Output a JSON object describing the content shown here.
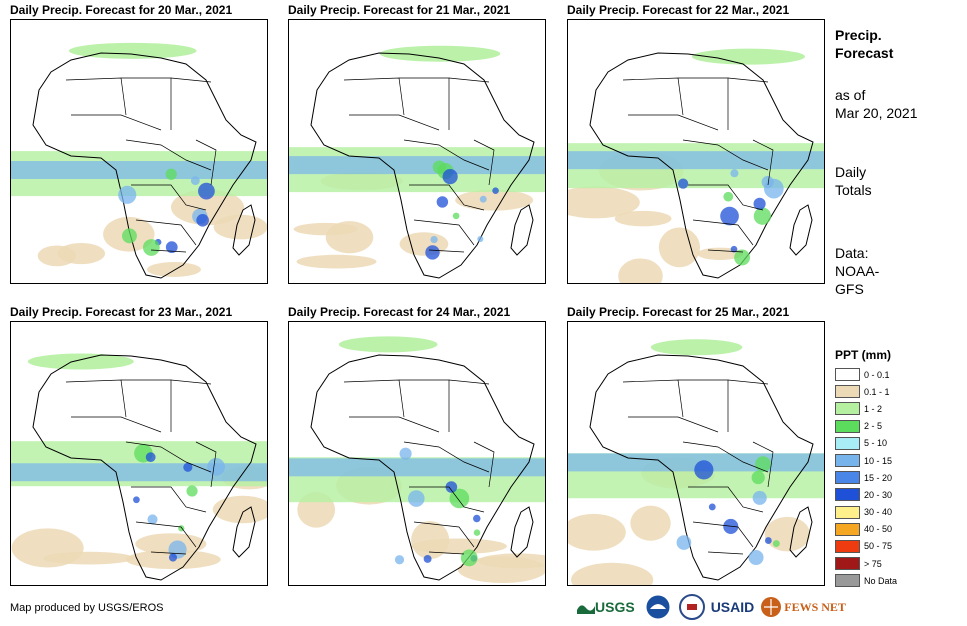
{
  "panels": [
    {
      "title": "Daily Precip. Forecast for 20 Mar., 2021"
    },
    {
      "title": "Daily Precip. Forecast for 21 Mar., 2021"
    },
    {
      "title": "Daily Precip. Forecast for 22 Mar., 2021"
    },
    {
      "title": "Daily Precip. Forecast for 23 Mar., 2021"
    },
    {
      "title": "Daily Precip. Forecast for 24 Mar., 2021"
    },
    {
      "title": "Daily Precip. Forecast for 25 Mar., 2021"
    }
  ],
  "sidebar": {
    "title_line1": "Precip.",
    "title_line2": "Forecast",
    "asof_line1": "as of",
    "asof_line2": "Mar 20, 2021",
    "daily_line1": "Daily",
    "daily_line2": "Totals",
    "data_line1": "Data:",
    "data_line2": "NOAA-",
    "data_line3": "GFS"
  },
  "legend": {
    "title": "PPT (mm)",
    "items": [
      {
        "label": "0 - 0.1",
        "color": "#ffffff"
      },
      {
        "label": "0.1 - 1",
        "color": "#ecd9b5"
      },
      {
        "label": "1 - 2",
        "color": "#b4f0a0"
      },
      {
        "label": "2 - 5",
        "color": "#5cdc5c"
      },
      {
        "label": "5 - 10",
        "color": "#a8eef4"
      },
      {
        "label": "10 - 15",
        "color": "#78b4ec"
      },
      {
        "label": "15 - 20",
        "color": "#4a86e8"
      },
      {
        "label": "20 - 30",
        "color": "#1e50d8"
      },
      {
        "label": "30 - 40",
        "color": "#fff08c"
      },
      {
        "label": "40 - 50",
        "color": "#f5a623"
      },
      {
        "label": "50 - 75",
        "color": "#ee3c10"
      },
      {
        "label": "> 75",
        "color": "#a01818"
      },
      {
        "label": "No Data",
        "color": "#999999"
      }
    ]
  },
  "footer": {
    "credit": "Map produced by USGS/EROS",
    "logo_usgs": "USGS",
    "logo_usaid": "USAID",
    "logo_fews": "FEWS NET"
  },
  "colors": {
    "tan": "#ecd9b5",
    "lightgreen": "#b4f0a0",
    "green": "#5cdc5c",
    "lightblue": "#78b4ec",
    "blue": "#1e50d8",
    "border": "#000000"
  }
}
